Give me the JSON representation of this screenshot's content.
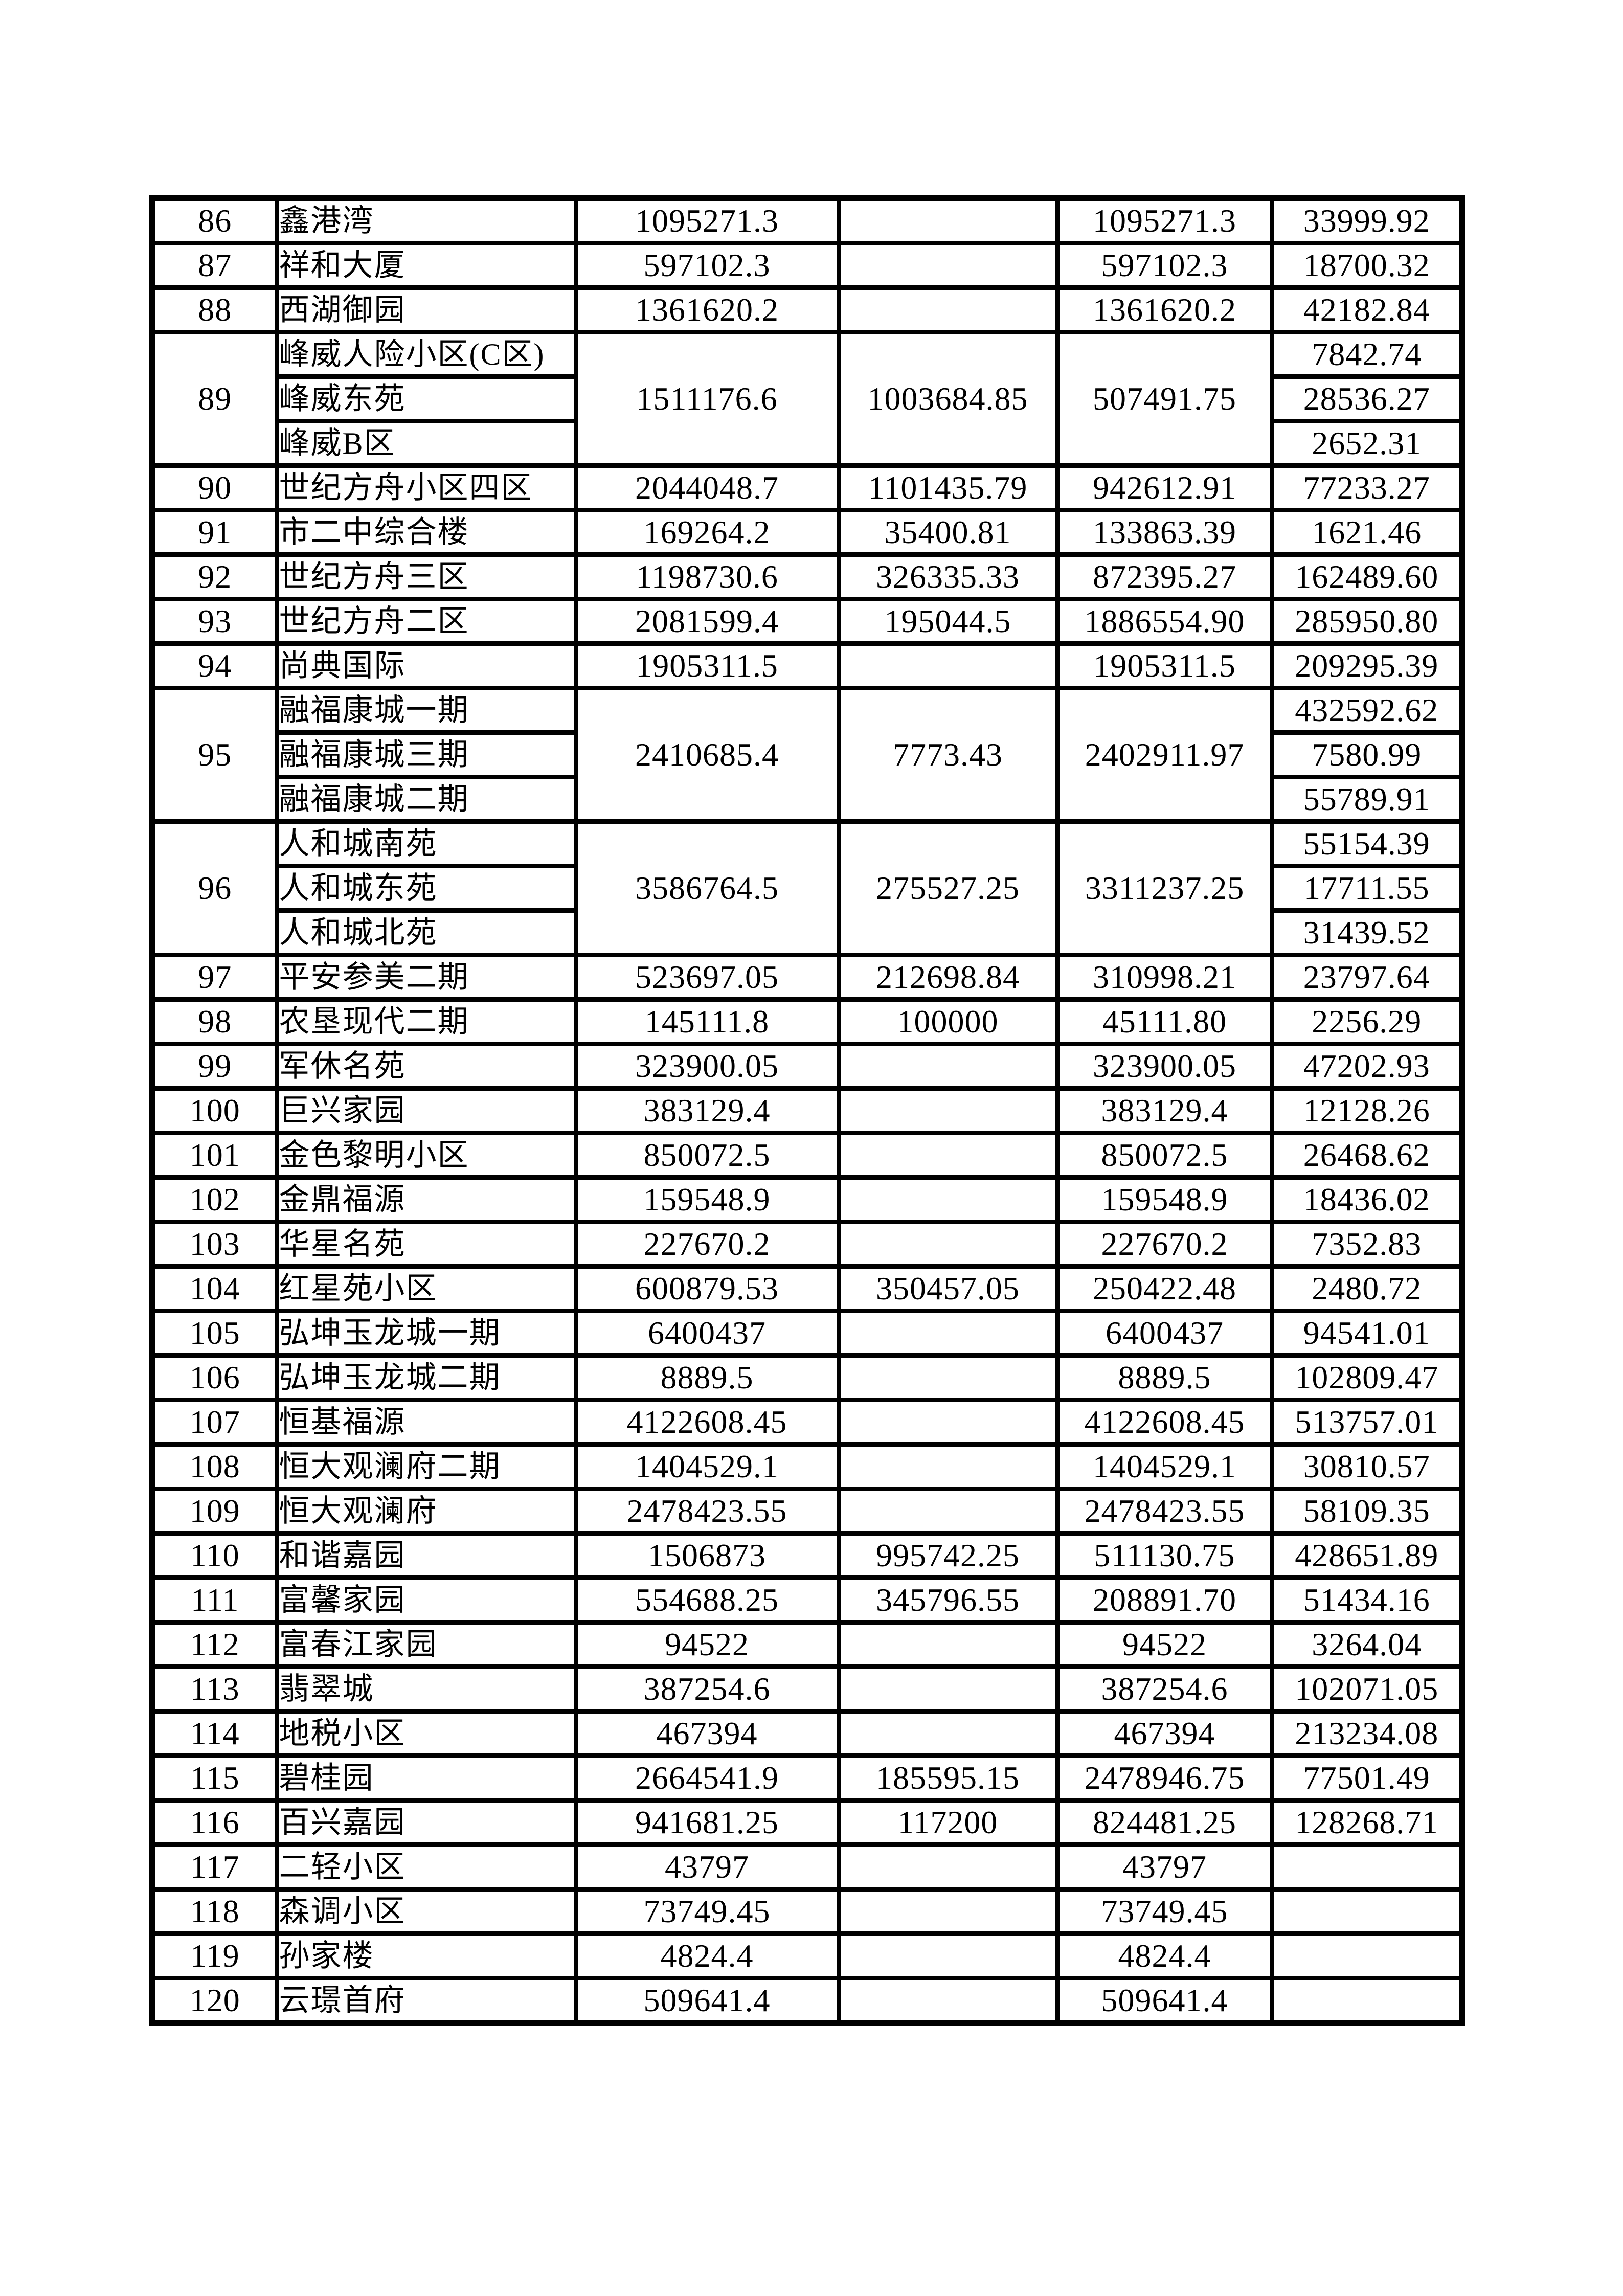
{
  "table": {
    "rows": [
      {
        "no": "86",
        "names": [
          "鑫港湾"
        ],
        "c3": "1095271.3",
        "c4": "",
        "c5": "1095271.3",
        "c6": [
          "33999.92"
        ]
      },
      {
        "no": "87",
        "names": [
          "祥和大厦"
        ],
        "c3": "597102.3",
        "c4": "",
        "c5": "597102.3",
        "c6": [
          "18700.32"
        ]
      },
      {
        "no": "88",
        "names": [
          "西湖御园"
        ],
        "c3": "1361620.2",
        "c4": "",
        "c5": "1361620.2",
        "c6": [
          "42182.84"
        ]
      },
      {
        "no": "89",
        "names": [
          "峰威人险小区(C区)",
          "峰威东苑",
          "峰威B区"
        ],
        "c3": "1511176.6",
        "c4": "1003684.85",
        "c5": "507491.75",
        "c6": [
          "7842.74",
          "28536.27",
          "2652.31"
        ]
      },
      {
        "no": "90",
        "names": [
          "世纪方舟小区四区"
        ],
        "c3": "2044048.7",
        "c4": "1101435.79",
        "c5": "942612.91",
        "c6": [
          "77233.27"
        ]
      },
      {
        "no": "91",
        "names": [
          "市二中综合楼"
        ],
        "c3": "169264.2",
        "c4": "35400.81",
        "c5": "133863.39",
        "c6": [
          "1621.46"
        ]
      },
      {
        "no": "92",
        "names": [
          "世纪方舟三区"
        ],
        "c3": "1198730.6",
        "c4": "326335.33",
        "c5": "872395.27",
        "c6": [
          "162489.60"
        ]
      },
      {
        "no": "93",
        "names": [
          "世纪方舟二区"
        ],
        "c3": "2081599.4",
        "c4": "195044.5",
        "c5": "1886554.90",
        "c6": [
          "285950.80"
        ]
      },
      {
        "no": "94",
        "names": [
          "尚典国际"
        ],
        "c3": "1905311.5",
        "c4": "",
        "c5": "1905311.5",
        "c6": [
          "209295.39"
        ]
      },
      {
        "no": "95",
        "names": [
          "融福康城一期",
          "融福康城三期",
          "融福康城二期"
        ],
        "c3": "2410685.4",
        "c4": "7773.43",
        "c5": "2402911.97",
        "c6": [
          "432592.62",
          "7580.99",
          "55789.91"
        ]
      },
      {
        "no": "96",
        "names": [
          "人和城南苑",
          "人和城东苑",
          "人和城北苑"
        ],
        "c3": "3586764.5",
        "c4": "275527.25",
        "c5": "3311237.25",
        "c6": [
          "55154.39",
          "17711.55",
          "31439.52"
        ]
      },
      {
        "no": "97",
        "names": [
          "平安参美二期"
        ],
        "c3": "523697.05",
        "c4": "212698.84",
        "c5": "310998.21",
        "c6": [
          "23797.64"
        ]
      },
      {
        "no": "98",
        "names": [
          "农垦现代二期"
        ],
        "c3": "145111.8",
        "c4": "100000",
        "c5": "45111.80",
        "c6": [
          "2256.29"
        ]
      },
      {
        "no": "99",
        "names": [
          "军休名苑"
        ],
        "c3": "323900.05",
        "c4": "",
        "c5": "323900.05",
        "c6": [
          "47202.93"
        ]
      },
      {
        "no": "100",
        "names": [
          "巨兴家园"
        ],
        "c3": "383129.4",
        "c4": "",
        "c5": "383129.4",
        "c6": [
          "12128.26"
        ]
      },
      {
        "no": "101",
        "names": [
          "金色黎明小区"
        ],
        "c3": "850072.5",
        "c4": "",
        "c5": "850072.5",
        "c6": [
          "26468.62"
        ]
      },
      {
        "no": "102",
        "names": [
          "金鼎福源"
        ],
        "c3": "159548.9",
        "c4": "",
        "c5": "159548.9",
        "c6": [
          "18436.02"
        ]
      },
      {
        "no": "103",
        "names": [
          "华星名苑"
        ],
        "c3": "227670.2",
        "c4": "",
        "c5": "227670.2",
        "c6": [
          "7352.83"
        ]
      },
      {
        "no": "104",
        "names": [
          "红星苑小区"
        ],
        "c3": "600879.53",
        "c4": "350457.05",
        "c5": "250422.48",
        "c6": [
          "2480.72"
        ]
      },
      {
        "no": "105",
        "names": [
          "弘坤玉龙城一期"
        ],
        "c3": "6400437",
        "c4": "",
        "c5": "6400437",
        "c6": [
          "94541.01"
        ]
      },
      {
        "no": "106",
        "names": [
          "弘坤玉龙城二期"
        ],
        "c3": "8889.5",
        "c4": "",
        "c5": "8889.5",
        "c6": [
          "102809.47"
        ]
      },
      {
        "no": "107",
        "names": [
          "恒基福源"
        ],
        "c3": "4122608.45",
        "c4": "",
        "c5": "4122608.45",
        "c6": [
          "513757.01"
        ]
      },
      {
        "no": "108",
        "names": [
          "恒大观澜府二期"
        ],
        "c3": "1404529.1",
        "c4": "",
        "c5": "1404529.1",
        "c6": [
          "30810.57"
        ]
      },
      {
        "no": "109",
        "names": [
          "恒大观澜府"
        ],
        "c3": "2478423.55",
        "c4": "",
        "c5": "2478423.55",
        "c6": [
          "58109.35"
        ]
      },
      {
        "no": "110",
        "names": [
          "和谐嘉园"
        ],
        "c3": "1506873",
        "c4": "995742.25",
        "c5": "511130.75",
        "c6": [
          "428651.89"
        ]
      },
      {
        "no": "111",
        "names": [
          "富馨家园"
        ],
        "c3": "554688.25",
        "c4": "345796.55",
        "c5": "208891.70",
        "c6": [
          "51434.16"
        ]
      },
      {
        "no": "112",
        "names": [
          "富春江家园"
        ],
        "c3": "94522",
        "c4": "",
        "c5": "94522",
        "c6": [
          "3264.04"
        ]
      },
      {
        "no": "113",
        "names": [
          "翡翠城"
        ],
        "c3": "387254.6",
        "c4": "",
        "c5": "387254.6",
        "c6": [
          "102071.05"
        ]
      },
      {
        "no": "114",
        "names": [
          "地税小区"
        ],
        "c3": "467394",
        "c4": "",
        "c5": "467394",
        "c6": [
          "213234.08"
        ]
      },
      {
        "no": "115",
        "names": [
          "碧桂园"
        ],
        "c3": "2664541.9",
        "c4": "185595.15",
        "c5": "2478946.75",
        "c6": [
          "77501.49"
        ]
      },
      {
        "no": "116",
        "names": [
          "百兴嘉园"
        ],
        "c3": "941681.25",
        "c4": "117200",
        "c5": "824481.25",
        "c6": [
          "128268.71"
        ]
      },
      {
        "no": "117",
        "names": [
          "二轻小区"
        ],
        "c3": "43797",
        "c4": "",
        "c5": "43797",
        "c6": [
          ""
        ]
      },
      {
        "no": "118",
        "names": [
          "森调小区"
        ],
        "c3": "73749.45",
        "c4": "",
        "c5": "73749.45",
        "c6": [
          ""
        ]
      },
      {
        "no": "119",
        "names": [
          "孙家楼"
        ],
        "c3": "4824.4",
        "c4": "",
        "c5": "4824.4",
        "c6": [
          ""
        ]
      },
      {
        "no": "120",
        "names": [
          "云璟首府"
        ],
        "c3": "509641.4",
        "c4": "",
        "c5": "509641.4",
        "c6": [
          ""
        ]
      }
    ]
  }
}
